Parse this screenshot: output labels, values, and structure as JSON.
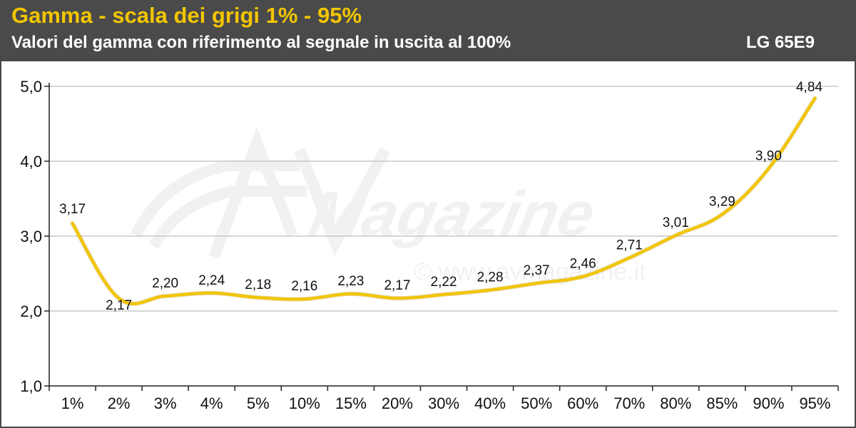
{
  "header": {
    "title": "Gamma - scala dei grigi 1% - 95%",
    "subtitle": "Valori del gamma con riferimento al segnale in uscita al 100%",
    "model": "LG 65E9"
  },
  "colors": {
    "header_bg": "#4a4a4a",
    "title": "#f2c500",
    "line": "#f2c500",
    "grid": "#c8c8c8"
  },
  "watermark": {
    "brand": "Magazine",
    "url": "© www.avmagazine.it"
  },
  "chart_data": {
    "type": "line",
    "title": "Gamma - scala dei grigi 1% - 95%",
    "subtitle": "Valori del gamma con riferimento al segnale in uscita al 100%",
    "categories": [
      "1%",
      "2%",
      "3%",
      "4%",
      "5%",
      "10%",
      "15%",
      "20%",
      "30%",
      "40%",
      "50%",
      "60%",
      "70%",
      "80%",
      "85%",
      "90%",
      "95%"
    ],
    "series": [
      {
        "name": "LG 65E9",
        "values": [
          3.17,
          2.17,
          2.2,
          2.24,
          2.18,
          2.16,
          2.23,
          2.17,
          2.22,
          2.28,
          2.37,
          2.46,
          2.71,
          3.01,
          3.29,
          3.9,
          4.84
        ],
        "labels": [
          "3,17",
          "2,17",
          "2,20",
          "2,24",
          "2,18",
          "2,16",
          "2,23",
          "2,17",
          "2,22",
          "2,28",
          "2,37",
          "2,46",
          "2,71",
          "3,01",
          "3,29",
          "3,90",
          "4,84"
        ]
      }
    ],
    "ylim": [
      1.0,
      5.0
    ],
    "yticks": [
      1.0,
      2.0,
      3.0,
      4.0,
      5.0
    ],
    "ytick_labels": [
      "1,0",
      "2,0",
      "3,0",
      "4,0",
      "5,0"
    ],
    "grid": true,
    "legend": "none",
    "xlabel": "",
    "ylabel": ""
  }
}
